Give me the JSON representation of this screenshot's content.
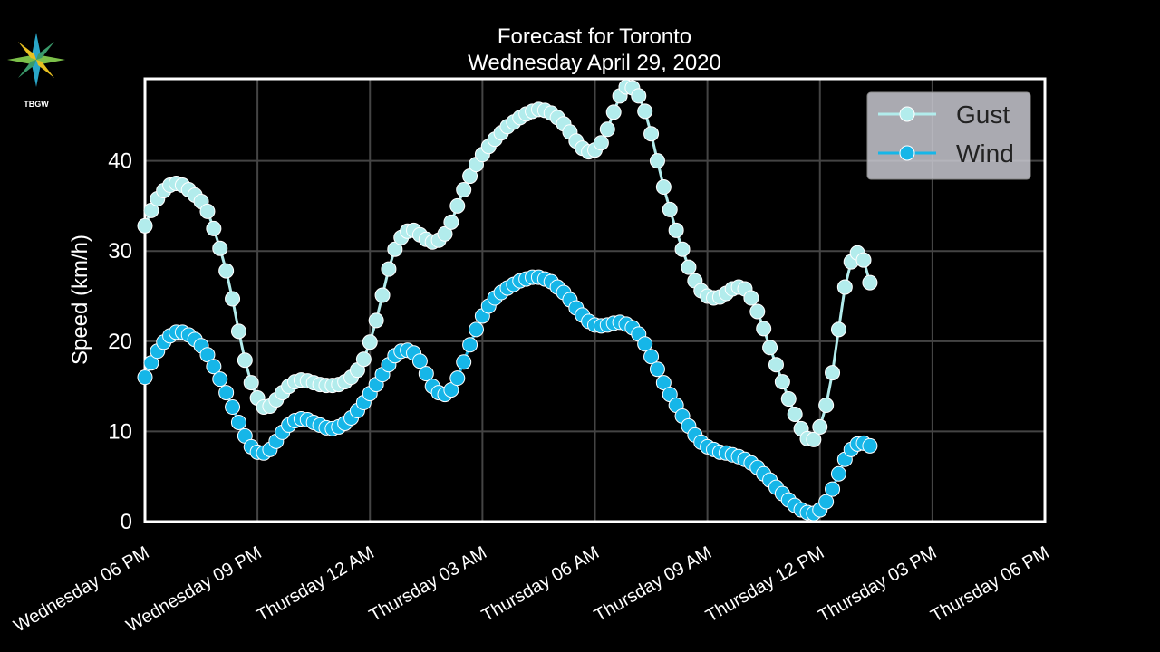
{
  "logo": {
    "text": "TBGW"
  },
  "chart_data": {
    "type": "line",
    "title": "Forecast for Toronto",
    "subtitle": "Wednesday April 29, 2020",
    "y_label": "Speed (km/h)",
    "x": [
      0,
      10,
      20,
      30,
      40,
      50,
      60,
      70,
      80,
      90,
      100,
      110,
      120,
      130,
      140,
      150,
      160,
      170,
      180,
      190,
      200,
      210,
      220,
      230,
      240,
      250,
      260,
      270,
      280,
      290,
      300,
      310,
      320,
      330,
      340,
      350,
      360,
      370,
      380,
      390,
      400,
      410,
      420,
      430,
      440,
      450,
      460,
      470,
      480,
      490,
      500,
      510,
      520,
      530,
      540,
      550,
      560,
      570,
      580,
      590,
      600,
      610,
      620,
      630,
      640,
      650,
      660,
      670,
      680,
      690,
      700,
      710,
      720,
      730,
      740,
      750,
      760,
      770,
      780,
      790,
      800,
      810,
      820,
      830,
      840,
      850,
      860,
      870,
      880,
      890,
      900,
      910,
      920,
      930,
      940,
      950,
      960,
      970,
      980,
      990,
      1000,
      1010,
      1020,
      1030,
      1040,
      1050,
      1060,
      1070,
      1080,
      1090,
      1100,
      1110,
      1120,
      1130,
      1140,
      1150,
      1160
    ],
    "xlim": [
      0,
      1440
    ],
    "xticks": [
      {
        "value": 0,
        "label": "Wednesday 06 PM"
      },
      {
        "value": 180,
        "label": "Wednesday 09 PM"
      },
      {
        "value": 360,
        "label": "Thursday 12 AM"
      },
      {
        "value": 540,
        "label": "Thursday 03 AM"
      },
      {
        "value": 720,
        "label": "Thursday 06 AM"
      },
      {
        "value": 900,
        "label": "Thursday 09 AM"
      },
      {
        "value": 1080,
        "label": "Thursday 12 PM"
      },
      {
        "value": 1260,
        "label": "Thursday 03 PM"
      },
      {
        "value": 1440,
        "label": "Thursday 06 PM"
      }
    ],
    "ylim": [
      0,
      49.1
    ],
    "yticks": [
      0,
      10,
      20,
      30,
      40
    ],
    "grid": true,
    "legend": "upper right",
    "series": [
      {
        "name": "Gust",
        "color": "#b2ecec",
        "values": [
          32.8,
          34.5,
          35.8,
          36.7,
          37.3,
          37.5,
          37.3,
          36.8,
          36.2,
          35.5,
          34.4,
          32.5,
          30.3,
          27.8,
          24.7,
          21.1,
          17.9,
          15.4,
          13.7,
          12.7,
          12.8,
          13.5,
          14.3,
          15.0,
          15.5,
          15.7,
          15.6,
          15.4,
          15.2,
          15.1,
          15.1,
          15.2,
          15.5,
          16.0,
          16.8,
          18.0,
          19.9,
          22.3,
          25.1,
          28.0,
          30.2,
          31.5,
          32.2,
          32.3,
          31.8,
          31.3,
          31.0,
          31.2,
          31.9,
          33.2,
          35.0,
          36.8,
          38.3,
          39.6,
          40.7,
          41.6,
          42.4,
          43.1,
          43.8,
          44.3,
          44.8,
          45.2,
          45.5,
          45.7,
          45.6,
          45.3,
          44.8,
          44.1,
          43.2,
          42.2,
          41.4,
          41.0,
          41.2,
          42.0,
          43.5,
          45.4,
          47.2,
          48.2,
          48.1,
          47.2,
          45.5,
          43.0,
          40.0,
          37.1,
          34.6,
          32.3,
          30.2,
          28.2,
          26.7,
          25.6,
          25.0,
          24.8,
          24.9,
          25.3,
          25.8,
          26.0,
          25.8,
          24.8,
          23.3,
          21.4,
          19.3,
          17.4,
          15.5,
          13.6,
          11.9,
          10.3,
          9.2,
          9.1,
          10.5,
          12.9,
          16.5,
          21.3,
          26.0,
          28.8,
          29.8,
          29.0,
          26.5
        ]
      },
      {
        "name": "Wind",
        "color": "#16b6e8",
        "values": [
          16.0,
          17.6,
          18.9,
          19.9,
          20.6,
          21.0,
          21.0,
          20.7,
          20.2,
          19.5,
          18.5,
          17.2,
          15.8,
          14.3,
          12.7,
          11.0,
          9.5,
          8.3,
          7.7,
          7.6,
          8.0,
          8.9,
          9.9,
          10.7,
          11.2,
          11.4,
          11.3,
          11.0,
          10.7,
          10.4,
          10.3,
          10.5,
          10.9,
          11.5,
          12.3,
          13.2,
          14.2,
          15.2,
          16.3,
          17.4,
          18.4,
          18.9,
          19.0,
          18.7,
          17.8,
          16.4,
          15.0,
          14.3,
          14.1,
          14.6,
          15.9,
          17.7,
          19.6,
          21.3,
          22.8,
          23.9,
          24.8,
          25.4,
          25.9,
          26.3,
          26.7,
          26.9,
          27.1,
          27.1,
          26.9,
          26.6,
          26.0,
          25.4,
          24.6,
          23.7,
          22.9,
          22.2,
          21.8,
          21.7,
          21.8,
          22.0,
          22.1,
          21.9,
          21.5,
          20.8,
          19.7,
          18.3,
          16.9,
          15.4,
          14.1,
          12.9,
          11.7,
          10.6,
          9.6,
          8.8,
          8.3,
          8.0,
          7.7,
          7.6,
          7.4,
          7.2,
          6.9,
          6.5,
          6.0,
          5.3,
          4.6,
          3.8,
          3.1,
          2.4,
          1.8,
          1.3,
          1.0,
          0.9,
          1.3,
          2.2,
          3.6,
          5.3,
          6.9,
          8.0,
          8.6,
          8.7,
          8.4
        ]
      }
    ]
  }
}
